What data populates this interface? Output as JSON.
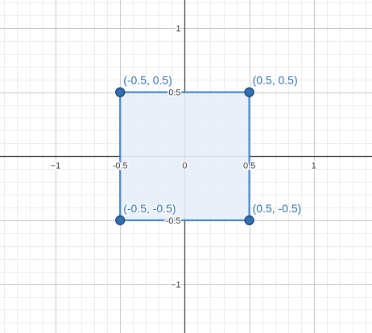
{
  "chart_data": {
    "type": "scatter",
    "title": "",
    "xlabel": "",
    "ylabel": "",
    "grid": true,
    "xlim": [
      -1.43,
      1.45
    ],
    "ylim": [
      -1.38,
      1.22
    ],
    "x_ticks": [
      {
        "value": -1,
        "label": "−1"
      },
      {
        "value": -0.5,
        "label": "-0.5"
      },
      {
        "value": 0,
        "label": "0"
      },
      {
        "value": 0.5,
        "label": "0.5"
      },
      {
        "value": 1,
        "label": "1"
      }
    ],
    "y_ticks": [
      {
        "value": 1,
        "label": "1"
      },
      {
        "value": 0.5,
        "label": "0.5"
      },
      {
        "value": -0.5,
        "label": "-0.5"
      },
      {
        "value": -1,
        "label": "−1"
      }
    ],
    "polygon": {
      "vertices": [
        [
          -0.5,
          0.5
        ],
        [
          0.5,
          0.5
        ],
        [
          0.5,
          -0.5
        ],
        [
          -0.5,
          -0.5
        ]
      ],
      "stroke_color": "#4a86c8",
      "fill_color": "#e6eff9"
    },
    "points": [
      {
        "x": -0.5,
        "y": 0.5,
        "label": "(-0.5, 0.5)"
      },
      {
        "x": 0.5,
        "y": 0.5,
        "label": "(0.5, 0.5)"
      },
      {
        "x": -0.5,
        "y": -0.5,
        "label": "(-0.5, -0.5)"
      },
      {
        "x": 0.5,
        "y": -0.5,
        "label": "(0.5, -0.5)"
      }
    ],
    "point_color": "#2d70b3",
    "point_outline_color": "#1a3d66",
    "label_color": "#2a6db2"
  }
}
